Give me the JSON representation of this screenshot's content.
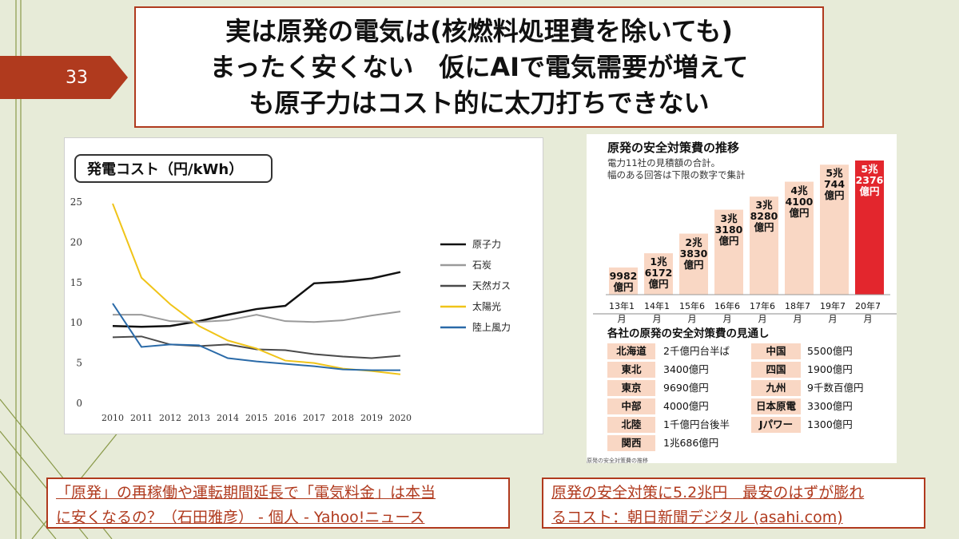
{
  "slide": {
    "number": "33",
    "title_lines": [
      "実は原発の電気は(核燃料処理費を除いても)",
      "まったく安くない　仮にAIで電気需要が増えて",
      "も原子力はコスト的に太刀打ちできない"
    ]
  },
  "colors": {
    "accent": "#b03a1e",
    "background": "#e7ebd8",
    "bar_fill": "#f9d7c4",
    "bar_highlight": "#e3262d",
    "series_nuclear": "#111111",
    "series_coal": "#9a9a9a",
    "series_gas": "#4a4a4a",
    "series_solar": "#f0c419",
    "series_wind": "#2a6aa8"
  },
  "chart_data": [
    {
      "type": "line",
      "title": "発電コスト（円/kWh）",
      "x": [
        "2010",
        "2011",
        "2012",
        "2013",
        "2014",
        "2015",
        "2016",
        "2017",
        "2018",
        "2019",
        "2020"
      ],
      "yticks": [
        "0",
        "5",
        "10",
        "15",
        "20",
        "25"
      ],
      "ylim": [
        0,
        25
      ],
      "grid": false,
      "legend_position": "right",
      "series": [
        {
          "name": "原子力",
          "values": [
            9.6,
            9.5,
            9.6,
            10.2,
            11.0,
            11.7,
            12.1,
            14.9,
            15.1,
            15.5,
            16.3
          ]
        },
        {
          "name": "石炭",
          "values": [
            11.0,
            11.0,
            10.2,
            10.1,
            10.3,
            11.0,
            10.2,
            10.1,
            10.3,
            10.9,
            11.4
          ]
        },
        {
          "name": "天然ガス",
          "values": [
            8.2,
            8.3,
            7.3,
            7.1,
            7.3,
            6.7,
            6.6,
            6.1,
            5.8,
            5.6,
            5.9
          ]
        },
        {
          "name": "太陽光",
          "values": [
            24.8,
            15.6,
            12.3,
            9.6,
            7.8,
            6.8,
            5.3,
            5.0,
            4.3,
            4.0,
            3.6
          ]
        },
        {
          "name": "陸上風力",
          "values": [
            12.4,
            7.0,
            7.3,
            7.2,
            5.6,
            5.2,
            4.9,
            4.6,
            4.2,
            4.1,
            4.1
          ]
        }
      ]
    },
    {
      "type": "bar",
      "title": "原発の安全対策費の推移",
      "notes": [
        "電力11社の見積額の合計。",
        "幅のある回答は下限の数字で集計"
      ],
      "categories": [
        "13年1月",
        "14年1月",
        "15年6月",
        "16年6月",
        "17年6月",
        "18年7月",
        "19年7月",
        "20年7月"
      ],
      "values_oku_yen": [
        9982,
        16172,
        23830,
        33180,
        38280,
        44100,
        50744,
        52376
      ],
      "value_labels": [
        [
          "9982",
          "億円"
        ],
        [
          "1兆",
          "6172",
          "億円"
        ],
        [
          "2兆",
          "3830",
          "億円"
        ],
        [
          "3兆",
          "3180",
          "億円"
        ],
        [
          "3兆",
          "8280",
          "億円"
        ],
        [
          "4兆",
          "4100",
          "億円"
        ],
        [
          "5兆",
          "744",
          "億円"
        ],
        [
          "5兆",
          "2376",
          "億円"
        ]
      ],
      "highlight_index": 7
    }
  ],
  "cost_outlook": {
    "title": "各社の原発の安全対策費の見通し",
    "left": [
      {
        "company": "北海道",
        "value": "2千億円台半ば"
      },
      {
        "company": "東北",
        "value": "3400億円"
      },
      {
        "company": "東京",
        "value": "9690億円"
      },
      {
        "company": "中部",
        "value": "4000億円"
      },
      {
        "company": "北陸",
        "value": "1千億円台後半"
      },
      {
        "company": "関西",
        "value": "1兆686億円"
      }
    ],
    "right": [
      {
        "company": "中国",
        "value": "5500億円"
      },
      {
        "company": "四国",
        "value": "1900億円"
      },
      {
        "company": "九州",
        "value": "9千数百億円"
      },
      {
        "company": "日本原電",
        "value": "3300億円"
      },
      {
        "company": "Jパワー",
        "value": "1300億円"
      }
    ],
    "source": "原発の安全対策費の推移"
  },
  "links": [
    {
      "lines": [
        "「原発」の再稼働や運転期間延長で「電気料金」は本当",
        "に安くなるの？（石田雅彦） - 個人 - Yahoo!ニュース"
      ]
    },
    {
      "lines": [
        "原発の安全対策に5.2兆円　最安のはずが膨れ",
        "るコスト：朝日新聞デジタル (asahi.com)"
      ]
    }
  ]
}
